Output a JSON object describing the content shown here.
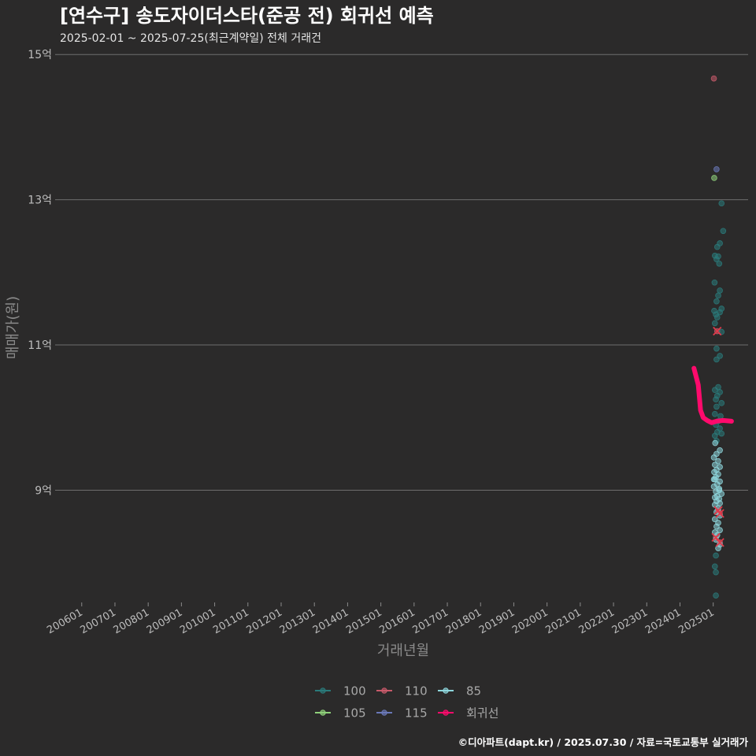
{
  "chart_data": {
    "type": "scatter",
    "title": "[연수구] 송도자이더스타(준공 전) 회귀선 예측",
    "subtitle": "2025-02-01 ~ 2025-07-25(최근계약일) 전체 거래건",
    "xlabel": "거래년월",
    "ylabel": "매매가(원)",
    "caption": "©디아파트(dapt.kr) / 2025.07.30 / 자료=국토교통부 실거래가",
    "ylim": [
      7.4,
      15.1
    ],
    "xlim": [
      2005.2,
      2026.05
    ],
    "y_ticks": [
      {
        "value": 9,
        "label": "9억"
      },
      {
        "value": 11,
        "label": "11억"
      },
      {
        "value": 13,
        "label": "13억"
      },
      {
        "value": 15,
        "label": "15억"
      }
    ],
    "x_ticks": [
      {
        "value": 2006.0,
        "label": "200601"
      },
      {
        "value": 2007.0,
        "label": "200701"
      },
      {
        "value": 2008.0,
        "label": "200801"
      },
      {
        "value": 2009.0,
        "label": "200901"
      },
      {
        "value": 2010.0,
        "label": "201001"
      },
      {
        "value": 2011.0,
        "label": "201101"
      },
      {
        "value": 2012.0,
        "label": "201201"
      },
      {
        "value": 2013.0,
        "label": "201301"
      },
      {
        "value": 2014.0,
        "label": "201401"
      },
      {
        "value": 2015.0,
        "label": "201501"
      },
      {
        "value": 2016.0,
        "label": "201601"
      },
      {
        "value": 2017.0,
        "label": "201701"
      },
      {
        "value": 2018.0,
        "label": "201801"
      },
      {
        "value": 2019.0,
        "label": "201901"
      },
      {
        "value": 2020.0,
        "label": "202001"
      },
      {
        "value": 2021.0,
        "label": "202101"
      },
      {
        "value": 2022.0,
        "label": "202201"
      },
      {
        "value": 2023.0,
        "label": "202301"
      },
      {
        "value": 2024.0,
        "label": "202401"
      },
      {
        "value": 2025.0,
        "label": "202501"
      }
    ],
    "legend": [
      {
        "name": "100",
        "color": "#2a7a7a"
      },
      {
        "name": "110",
        "color": "#c85a6a"
      },
      {
        "name": "85",
        "color": "#8ed6dc"
      },
      {
        "name": "105",
        "color": "#8fd07a"
      },
      {
        "name": "115",
        "color": "#6a78b8"
      },
      {
        "name": "회귀선",
        "color": "#ff0a6c"
      }
    ],
    "series": [
      {
        "name": "110",
        "color": "#c85a6a",
        "points": [
          [
            2025.02,
            14.67
          ],
          [
            2025.12,
            11.19
          ],
          [
            2025.15,
            8.72
          ],
          [
            2025.2,
            8.68
          ],
          [
            2025.08,
            8.35
          ],
          [
            2025.2,
            8.28
          ]
        ]
      },
      {
        "name": "115",
        "color": "#6a78b8",
        "points": [
          [
            2025.1,
            13.42
          ]
        ]
      },
      {
        "name": "105",
        "color": "#8fd07a",
        "points": [
          [
            2025.03,
            13.3
          ]
        ]
      },
      {
        "name": "100",
        "color": "#2a7a7a",
        "points": [
          [
            2025.25,
            12.95
          ],
          [
            2025.3,
            12.57
          ],
          [
            2025.2,
            12.4
          ],
          [
            2025.12,
            12.35
          ],
          [
            2025.05,
            12.23
          ],
          [
            2025.1,
            12.18
          ],
          [
            2025.15,
            12.22
          ],
          [
            2025.18,
            12.12
          ],
          [
            2025.04,
            11.86
          ],
          [
            2025.2,
            11.75
          ],
          [
            2025.15,
            11.68
          ],
          [
            2025.1,
            11.6
          ],
          [
            2025.25,
            11.5
          ],
          [
            2025.2,
            11.45
          ],
          [
            2025.03,
            11.47
          ],
          [
            2025.08,
            11.42
          ],
          [
            2025.12,
            11.38
          ],
          [
            2025.05,
            11.3
          ],
          [
            2025.25,
            11.18
          ],
          [
            2025.1,
            10.95
          ],
          [
            2025.2,
            10.85
          ],
          [
            2025.1,
            10.8
          ],
          [
            2025.15,
            10.42
          ],
          [
            2025.05,
            10.38
          ],
          [
            2025.2,
            10.35
          ],
          [
            2025.12,
            10.3
          ],
          [
            2025.08,
            10.25
          ],
          [
            2025.25,
            10.2
          ],
          [
            2025.1,
            10.15
          ],
          [
            2025.05,
            10.05
          ],
          [
            2025.22,
            10.02
          ],
          [
            2025.15,
            9.95
          ],
          [
            2025.08,
            9.9
          ],
          [
            2025.2,
            9.85
          ],
          [
            2025.12,
            9.8
          ],
          [
            2025.25,
            9.78
          ],
          [
            2025.05,
            9.75
          ],
          [
            2025.1,
            9.68
          ],
          [
            2025.08,
            8.1
          ],
          [
            2025.05,
            7.95
          ],
          [
            2025.08,
            7.87
          ],
          [
            2025.08,
            7.55
          ]
        ]
      },
      {
        "name": "85",
        "color": "#8ed6dc",
        "points": [
          [
            2025.2,
            9.55
          ],
          [
            2025.1,
            9.5
          ],
          [
            2025.02,
            9.45
          ],
          [
            2025.15,
            9.4
          ],
          [
            2025.05,
            9.35
          ],
          [
            2025.2,
            9.32
          ],
          [
            2025.1,
            9.28
          ],
          [
            2025.03,
            9.25
          ],
          [
            2025.15,
            9.22
          ],
          [
            2025.08,
            9.18
          ],
          [
            2025.05,
            9.15
          ],
          [
            2025.2,
            9.12
          ],
          [
            2025.12,
            9.08
          ],
          [
            2025.02,
            9.05
          ],
          [
            2025.18,
            9.02
          ],
          [
            2025.08,
            8.98
          ],
          [
            2025.25,
            8.95
          ],
          [
            2025.12,
            8.92
          ],
          [
            2025.05,
            8.9
          ],
          [
            2025.18,
            8.88
          ],
          [
            2025.1,
            8.85
          ],
          [
            2025.2,
            8.82
          ],
          [
            2025.05,
            8.8
          ],
          [
            2025.15,
            8.75
          ],
          [
            2025.1,
            8.7
          ],
          [
            2025.2,
            8.65
          ],
          [
            2025.05,
            8.6
          ],
          [
            2025.15,
            8.55
          ],
          [
            2025.1,
            8.5
          ],
          [
            2025.2,
            8.45
          ],
          [
            2025.05,
            8.42
          ],
          [
            2025.12,
            8.38
          ],
          [
            2025.08,
            8.32
          ],
          [
            2025.2,
            8.25
          ],
          [
            2025.15,
            8.2
          ],
          [
            2025.02,
            9.15
          ],
          [
            2025.06,
            9.65
          ],
          [
            2025.18,
            9.0
          ]
        ]
      }
    ],
    "regression_line": {
      "name": "회귀선",
      "color": "#ff0a6c",
      "points": [
        [
          2024.42,
          10.68
        ],
        [
          2024.55,
          10.45
        ],
        [
          2024.62,
          10.1
        ],
        [
          2024.7,
          10.0
        ],
        [
          2024.82,
          9.96
        ],
        [
          2024.95,
          9.93
        ],
        [
          2025.1,
          9.95
        ],
        [
          2025.3,
          9.96
        ],
        [
          2025.55,
          9.95
        ]
      ]
    }
  }
}
